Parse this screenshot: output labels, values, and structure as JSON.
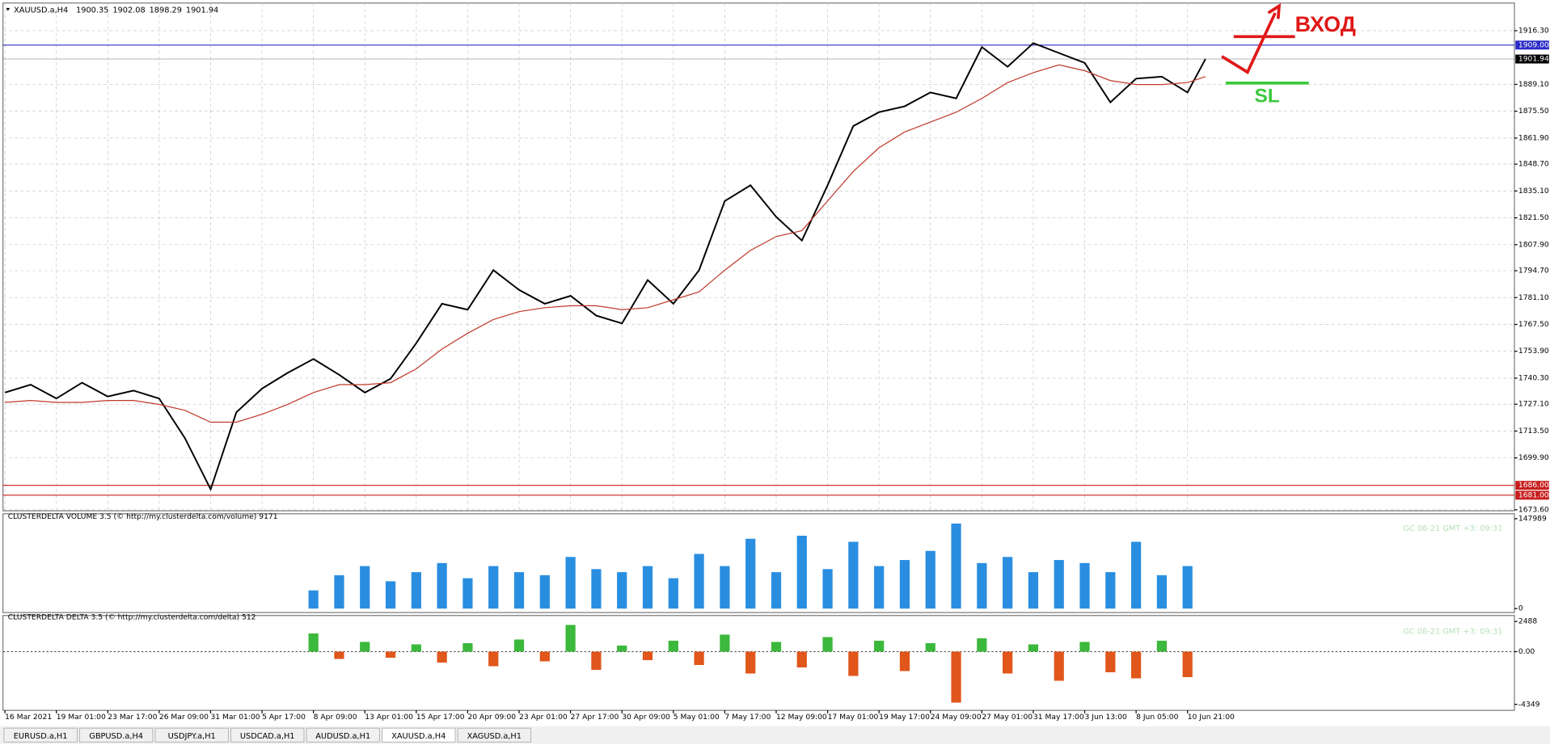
{
  "header": {
    "symbol": "XAUUSD.a,H4",
    "ohlc": [
      1900.35,
      1902.08,
      1898.29,
      1901.94
    ]
  },
  "chart_data": [
    {
      "type": "line",
      "x": [
        0,
        0.5,
        1,
        1.5,
        2,
        2.5,
        3,
        3.5,
        4,
        4.5,
        5,
        5.5,
        6,
        6.5,
        7,
        7.5,
        8,
        8.5,
        9,
        9.5,
        10,
        10.5,
        11,
        11.5,
        12,
        12.5,
        13,
        13.5,
        14,
        14.5,
        15,
        15.5,
        16,
        16.5,
        17,
        17.5,
        18,
        18.5,
        19,
        19.5,
        20,
        20.5,
        21,
        21.5,
        22,
        22.5,
        23,
        23.35
      ],
      "series": [
        {
          "color": "#000000",
          "values": [
            1733,
            1737,
            1730,
            1738,
            1731,
            1734,
            1730,
            1710,
            1684,
            1723,
            1735,
            1743,
            1750,
            1742,
            1733,
            1740,
            1758,
            1778,
            1775,
            1795,
            1785,
            1778,
            1782,
            1772,
            1768,
            1790,
            1778,
            1795,
            1830,
            1838,
            1822,
            1810,
            1838,
            1868,
            1875,
            1878,
            1885,
            1882,
            1908,
            1898,
            1910,
            1905,
            1900,
            1880,
            1892,
            1893,
            1885,
            1902
          ]
        },
        {
          "color": "#c0392b",
          "values": [
            1728,
            1729,
            1728,
            1728,
            1729,
            1729,
            1727,
            1724,
            1718,
            1718,
            1722,
            1727,
            1733,
            1737,
            1737,
            1738,
            1745,
            1755,
            1763,
            1770,
            1774,
            1776,
            1777,
            1777,
            1775,
            1776,
            1780,
            1784,
            1795,
            1805,
            1812,
            1815,
            1830,
            1845,
            1857,
            1865,
            1870,
            1875,
            1882,
            1890,
            1895,
            1899,
            1896,
            1891,
            1889,
            1889,
            1890,
            1893
          ]
        }
      ],
      "xlim": [
        0,
        29.3
      ],
      "xticks": [
        {
          "value": 0,
          "label": "16 Mar 2021"
        },
        {
          "value": 1,
          "label": "19 Mar 01:00"
        },
        {
          "value": 2,
          "label": "23 Mar 17:00"
        },
        {
          "value": 3,
          "label": "26 Mar 09:00"
        },
        {
          "value": 4,
          "label": "31 Mar 01:00"
        },
        {
          "value": 5,
          "label": "5 Apr 17:00"
        },
        {
          "value": 6,
          "label": "8 Apr 09:00"
        },
        {
          "value": 7,
          "label": "13 Apr 01:00"
        },
        {
          "value": 8,
          "label": "15 Apr 17:00"
        },
        {
          "value": 9,
          "label": "20 Apr 09:00"
        },
        {
          "value": 10,
          "label": "23 Apr 01:00"
        },
        {
          "value": 11,
          "label": "27 Apr 17:00"
        },
        {
          "value": 12,
          "label": "30 Apr 09:00"
        },
        {
          "value": 13,
          "label": "5 May 01:00"
        },
        {
          "value": 14,
          "label": "7 May 17:00"
        },
        {
          "value": 15,
          "label": "12 May 09:00"
        },
        {
          "value": 16,
          "label": "17 May 01:00"
        },
        {
          "value": 17,
          "label": "19 May 17:00"
        },
        {
          "value": 18,
          "label": "24 May 09:00"
        },
        {
          "value": 19,
          "label": "27 May 01:00"
        },
        {
          "value": 20,
          "label": "31 May 17:00"
        },
        {
          "value": 21,
          "label": "3 Jun 13:00"
        },
        {
          "value": 22,
          "label": "8 Jun 05:00"
        },
        {
          "value": 23,
          "label": "10 Jun 21:00"
        }
      ],
      "ylim": [
        1673.1,
        1930.3
      ],
      "yticks": [
        {
          "value": 1916.3,
          "label": "1916.30"
        },
        {
          "value": 1889.1,
          "label": "1889.10"
        },
        {
          "value": 1875.5,
          "label": "1875.50"
        },
        {
          "value": 1861.9,
          "label": "1861.90"
        },
        {
          "value": 1848.7,
          "label": "1848.70"
        },
        {
          "value": 1835.1,
          "label": "1835.10"
        },
        {
          "value": 1821.5,
          "label": "1821.50"
        },
        {
          "value": 1807.9,
          "label": "1807.90"
        },
        {
          "value": 1794.7,
          "label": "1794.70"
        },
        {
          "value": 1781.1,
          "label": "1781.10"
        },
        {
          "value": 1767.5,
          "label": "1767.50"
        },
        {
          "value": 1753.9,
          "label": "1753.90"
        },
        {
          "value": 1740.3,
          "label": "1740.30"
        },
        {
          "value": 1727.1,
          "label": "1727.10"
        },
        {
          "value": 1713.5,
          "label": "1713.50"
        },
        {
          "value": 1699.9,
          "label": "1699.90"
        },
        {
          "value": 1673.6,
          "label": "1673.60"
        }
      ],
      "grid": true,
      "levels": [
        {
          "value": 1909,
          "label": "1909.00",
          "color": "#2b2bc8"
        },
        {
          "value": 1901.94,
          "label": "1901.94",
          "color": "#000000"
        },
        {
          "value": 1686,
          "label": "1686.00",
          "color": "#c81e1e"
        },
        {
          "value": 1681,
          "label": "1681.00",
          "color": "#c81e1e"
        }
      ]
    },
    {
      "type": "bar",
      "title": "CLUSTERDELTA VOLUME 3.5 (© http://my.clusterdelta.com/volume) 9171",
      "watermark": "GC 08-21 GMT +3: 09:31",
      "x": [
        6,
        6.5,
        7,
        7.5,
        8,
        8.5,
        9,
        9.5,
        10,
        10.5,
        11,
        11.5,
        12,
        12.5,
        13,
        13.5,
        14,
        14.5,
        15,
        15.5,
        16,
        16.5,
        17,
        17.5,
        18,
        18.5,
        19,
        19.5,
        20,
        20.5,
        21,
        21.5,
        22,
        22.5,
        23
      ],
      "values": [
        30000,
        55000,
        70000,
        45000,
        60000,
        75000,
        50000,
        70000,
        60000,
        55000,
        85000,
        65000,
        60000,
        70000,
        50000,
        90000,
        70000,
        115000,
        60000,
        120000,
        65000,
        110000,
        70000,
        80000,
        95000,
        140000,
        75000,
        85000,
        60000,
        80000,
        75000,
        60000,
        110000,
        55000,
        70000
      ],
      "color": "#2a8ee0",
      "ylim": [
        0,
        147989
      ],
      "yticks": [
        147989,
        0
      ]
    },
    {
      "type": "bar",
      "title": "CLUSTERDELTA DELTA 3.5 (© http://my.clusterdelta.com/delta) 512",
      "watermark": "GC 08-21 GMT +3: 09:31",
      "x": [
        6,
        6.5,
        7,
        7.5,
        8,
        8.5,
        9,
        9.5,
        10,
        10.5,
        11,
        11.5,
        12,
        12.5,
        13,
        13.5,
        14,
        14.5,
        15,
        15.5,
        16,
        16.5,
        17,
        17.5,
        18,
        18.5,
        19,
        19.5,
        20,
        20.5,
        21,
        21.5,
        22,
        22.5,
        23
      ],
      "values": [
        1500,
        -600,
        800,
        -500,
        600,
        -900,
        700,
        -1200,
        1000,
        -800,
        2200,
        -1500,
        500,
        -700,
        900,
        -1100,
        1400,
        -1800,
        800,
        -1300,
        1200,
        -2000,
        900,
        -1600,
        700,
        -4200,
        1100,
        -1800,
        600,
        -2400,
        800,
        -1700,
        -2200,
        900,
        -2100
      ],
      "color": "#3cb83c",
      "negative_color": "#e0561b",
      "ylim": [
        -4349,
        2488
      ],
      "yticks": [
        2488,
        {
          "value": 0,
          "label": "0.00"
        },
        -4349
      ],
      "zero_line": true
    }
  ],
  "annotations": {
    "entry": "ВХОД",
    "stop": "SL"
  },
  "tabs": [
    "EURUSD.a,H1",
    "GBPUSD.a,H4",
    "USDJPY.a,H1",
    "USDCAD.a,H1",
    "AUDUSD.a,H1",
    "XAUUSD.a,H4",
    "XAGUSD.a,H1"
  ],
  "active_tab": 5
}
